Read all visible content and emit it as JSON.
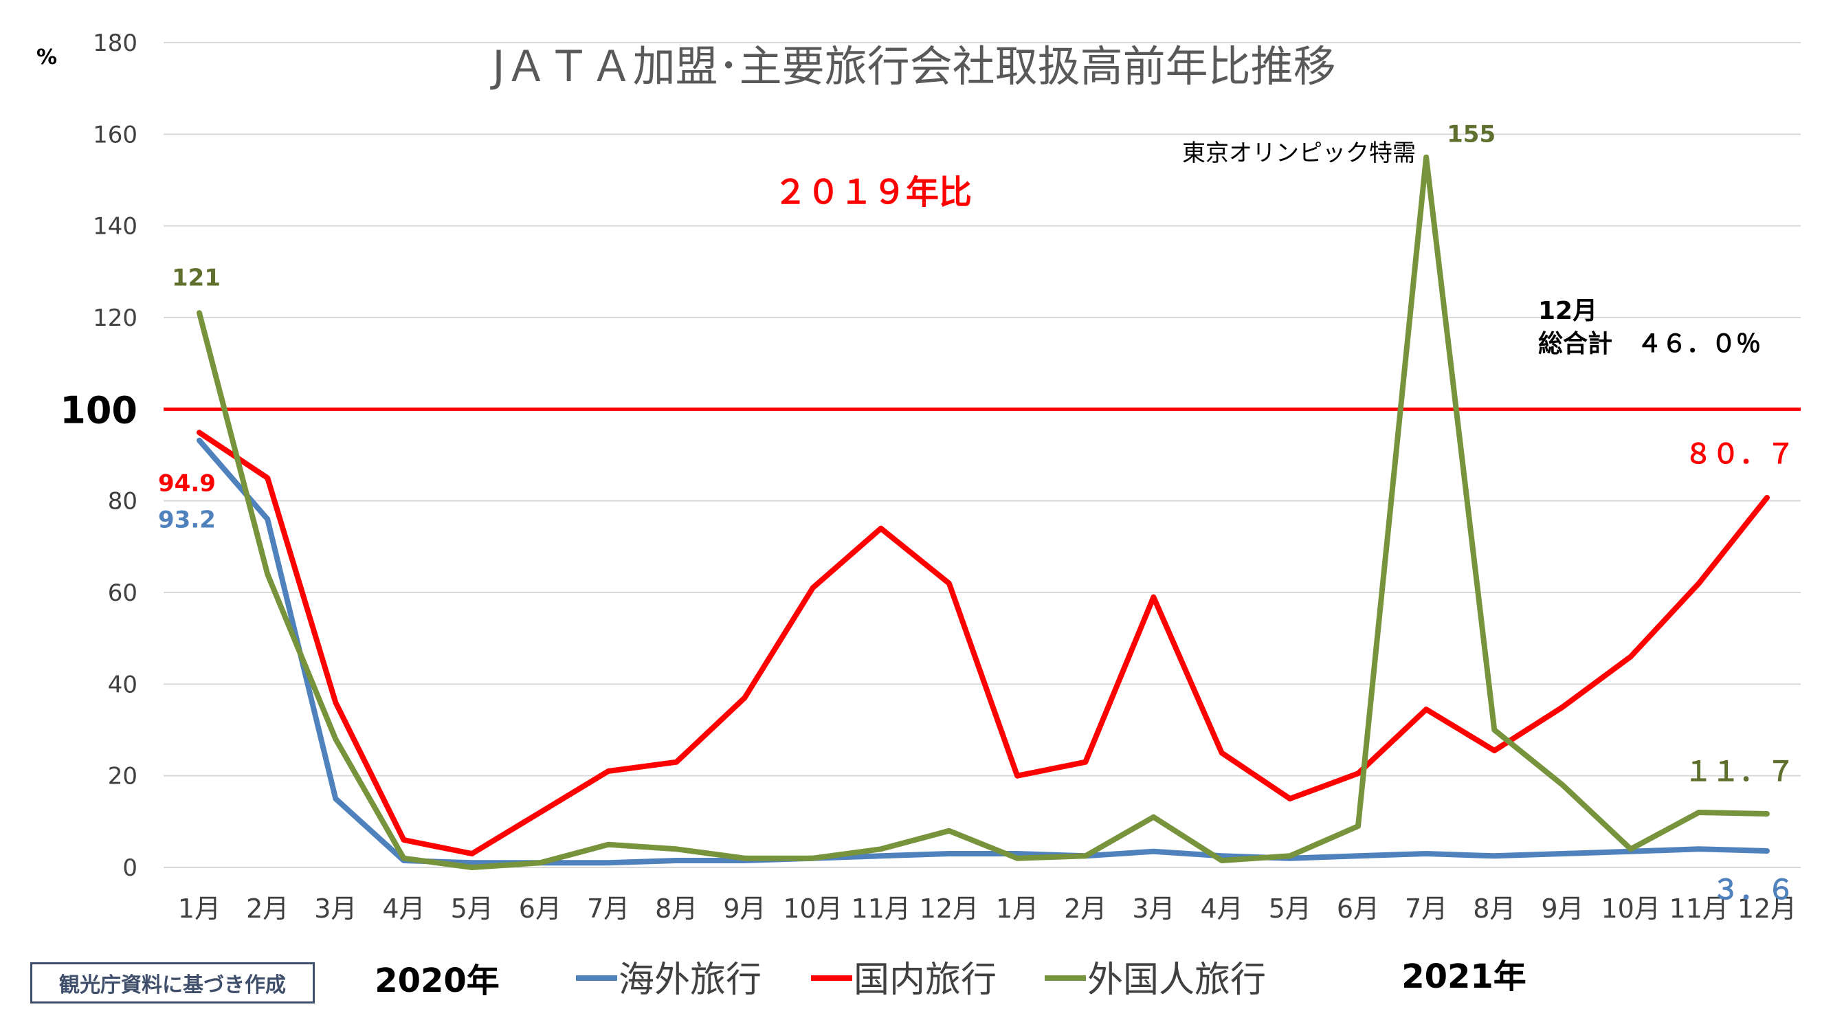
{
  "chart_data": {
    "type": "line",
    "title": "JＡＴＡ加盟･主要旅行会社取扱高前年比推移",
    "subtitle": "２０１９年比",
    "ylabel": "%",
    "ylim": [
      0,
      180
    ],
    "yticks": [
      "0",
      "20",
      "40",
      "60",
      "80",
      "",
      "120",
      "140",
      "160",
      "180"
    ],
    "reference_line": {
      "value": 100,
      "label": "100",
      "color": "#ff0000"
    },
    "categories": [
      "1月",
      "2月",
      "3月",
      "4月",
      "5月",
      "6月",
      "7月",
      "8月",
      "9月",
      "10月",
      "11月",
      "12月",
      "1月",
      "2月",
      "3月",
      "4月",
      "5月",
      "6月",
      "7月",
      "8月",
      "9月",
      "10月",
      "11月",
      "12月"
    ],
    "year_labels": [
      "2020年",
      "2021年"
    ],
    "series": [
      {
        "name": "海外旅行",
        "color": "#4f81bd",
        "values": [
          93.2,
          76,
          15,
          1.5,
          1,
          1,
          1,
          1.5,
          1.5,
          2,
          2.5,
          3,
          3,
          2.5,
          3.5,
          2.5,
          2,
          2.5,
          3,
          2.5,
          3,
          3.5,
          4,
          3.6
        ]
      },
      {
        "name": "国内旅行",
        "color": "#ff0000",
        "values": [
          94.9,
          85,
          36,
          6,
          3,
          12,
          21,
          23,
          37,
          61,
          74,
          62,
          20,
          23,
          59,
          25,
          15,
          20.5,
          34.5,
          25.5,
          35,
          46,
          62,
          80.7
        ]
      },
      {
        "name": "外国人旅行",
        "color": "#77933c",
        "values": [
          121,
          64,
          28,
          2,
          0,
          1,
          5,
          4,
          2,
          2,
          4,
          8,
          2,
          2.5,
          11,
          1.5,
          2.5,
          9,
          155,
          30,
          18,
          4,
          12,
          11.7
        ]
      }
    ],
    "data_labels": [
      {
        "series": 2,
        "index": 0,
        "text": "121",
        "color": "#5e6f2e"
      },
      {
        "series": 1,
        "index": 0,
        "text": "94.9",
        "color": "#ff0000"
      },
      {
        "series": 0,
        "index": 0,
        "text": "93.2",
        "color": "#4f81bd"
      },
      {
        "series": 2,
        "index": 18,
        "text": "155",
        "color": "#5e6f2e"
      },
      {
        "series": 1,
        "index": 23,
        "text": "８０．７",
        "color": "#ff0000"
      },
      {
        "series": 2,
        "index": 23,
        "text": "１１．７",
        "color": "#5e6f2e"
      },
      {
        "series": 0,
        "index": 23,
        "text": "３．６",
        "color": "#4f81bd"
      }
    ],
    "annotations": {
      "olympic": "東京オリンピック特需",
      "total_month": "12月",
      "total_value": "総合計　４６．０％"
    },
    "legend_position": "bottom",
    "grid": true
  },
  "source_note": "観光庁資料に基づき作成"
}
